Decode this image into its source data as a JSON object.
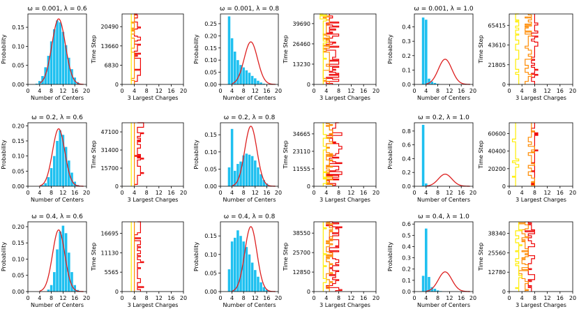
{
  "figure": {
    "common_hist_xlabel": "Number of Centers",
    "common_hist_ylabel": "Probability",
    "common_trace_xlabel": "3 Largest Charges",
    "common_trace_ylabel": "Time Step",
    "colors": {
      "bars": "#1ec0f0",
      "curve": "#dd1f1f",
      "largest": "#ee0000",
      "second": "#ff8a00",
      "third": "#ffee00"
    }
  },
  "chart_data": [
    {
      "type": "bar",
      "title": "ω = 0.001, λ = 0.6",
      "xlabel": "Number of Centers",
      "ylabel": "Probability",
      "xlim": [
        0,
        20
      ],
      "ylim": [
        0,
        0.185
      ],
      "xticks": [
        0,
        4,
        8,
        12,
        16,
        20
      ],
      "yticks": [
        0.0,
        0.05,
        0.1,
        0.15
      ],
      "ytick_labels": [
        "0.00",
        "0.05",
        "0.10",
        "0.15"
      ],
      "bar_x": [
        3,
        4,
        5,
        6,
        7,
        8,
        9,
        10,
        11,
        12,
        13,
        14,
        15,
        16,
        17
      ],
      "bar_values": [
        0.002,
        0.009,
        0.022,
        0.045,
        0.075,
        0.113,
        0.145,
        0.168,
        0.163,
        0.138,
        0.103,
        0.07,
        0.04,
        0.018,
        0.006
      ],
      "curve_mean": 10.5,
      "curve_sd": 2.3,
      "curve_peak": 0.172
    },
    {
      "type": "line",
      "xlabel": "3 Largest Charges",
      "ylabel": "Time Step",
      "xlim": [
        0,
        20
      ],
      "ymax": 25000,
      "xticks": [
        0,
        4,
        8,
        12,
        16,
        20
      ],
      "yticks": [
        0,
        6830,
        13660,
        20490
      ],
      "series": [
        {
          "name": "largest",
          "center": 5.2,
          "spread": 1.2,
          "max": 10
        },
        {
          "name": "second",
          "center": 3.8,
          "spread": 0.5,
          "max": 5
        },
        {
          "name": "third",
          "center": 3.0,
          "spread": 0.4,
          "max": 4
        }
      ]
    },
    {
      "type": "bar",
      "title": "ω = 0.001, λ = 0.8",
      "xlabel": "Number of Centers",
      "ylabel": "Probability",
      "xlim": [
        0,
        20
      ],
      "ylim": [
        0,
        0.29
      ],
      "xticks": [
        0,
        4,
        8,
        12,
        16,
        20
      ],
      "yticks": [
        0.0,
        0.05,
        0.1,
        0.15,
        0.2,
        0.25
      ],
      "ytick_labels": [
        "0.00",
        "0.05",
        "0.10",
        "0.15",
        "0.20",
        "0.25"
      ],
      "bar_x": [
        3,
        4,
        5,
        6,
        7,
        8,
        9,
        10,
        11,
        12,
        13,
        14,
        15
      ],
      "bar_values": [
        0.28,
        0.19,
        0.135,
        0.1,
        0.08,
        0.07,
        0.058,
        0.048,
        0.035,
        0.025,
        0.015,
        0.008,
        0.003
      ],
      "curve_mean": 10.5,
      "curve_sd": 2.3,
      "curve_peak": 0.175
    },
    {
      "type": "line",
      "xlabel": "3 Largest Charges",
      "ylabel": "Time Step",
      "xlim": [
        0,
        20
      ],
      "ymax": 46000,
      "xticks": [
        0,
        4,
        8,
        12,
        16,
        20
      ],
      "yticks": [
        0,
        13230,
        26460,
        39690
      ],
      "series": [
        {
          "name": "largest",
          "center": 6.0,
          "spread": 2.2,
          "max": 12
        },
        {
          "name": "second",
          "center": 4.3,
          "spread": 1.2,
          "max": 7
        },
        {
          "name": "third",
          "center": 3.0,
          "spread": 0.6,
          "max": 4
        }
      ]
    },
    {
      "type": "bar",
      "title": "ω = 0.001, λ = 1.0",
      "xlabel": "Number of Centers",
      "ylabel": "Probability",
      "xlim": [
        0,
        20
      ],
      "ylim": [
        0,
        0.49
      ],
      "xticks": [
        0,
        4,
        8,
        12,
        16,
        20
      ],
      "yticks": [
        0.0,
        0.1,
        0.2,
        0.3,
        0.4
      ],
      "ytick_labels": [
        "0.0",
        "0.1",
        "0.2",
        "0.3",
        "0.4"
      ],
      "bar_x": [
        3,
        4,
        5,
        6,
        7,
        8
      ],
      "bar_values": [
        0.465,
        0.45,
        0.04,
        0.02,
        0.01,
        0.004
      ],
      "curve_mean": 10.5,
      "curve_sd": 2.3,
      "curve_peak": 0.175
    },
    {
      "type": "line",
      "xlabel": "3 Largest Charges",
      "ylabel": "Time Step",
      "xlim": [
        0,
        20
      ],
      "ymax": 78000,
      "xticks": [
        0,
        4,
        8,
        12,
        16,
        20
      ],
      "yticks": [
        0,
        21805,
        43610,
        65415
      ],
      "series": [
        {
          "name": "largest",
          "center": 8.0,
          "spread": 1.0,
          "max": 11
        },
        {
          "name": "second",
          "center": 6.0,
          "spread": 1.5,
          "max": 8
        },
        {
          "name": "third",
          "center": 2.5,
          "spread": 0.8,
          "max": 4
        }
      ]
    },
    {
      "type": "bar",
      "title": "ω = 0.2, λ = 0.6",
      "xlabel": "Number of Centers",
      "ylabel": "Probability",
      "xlim": [
        0,
        20
      ],
      "ylim": [
        0,
        0.21
      ],
      "xticks": [
        0,
        4,
        8,
        12,
        16,
        20
      ],
      "yticks": [
        0.0,
        0.05,
        0.1,
        0.15,
        0.2
      ],
      "ytick_labels": [
        "0.00",
        "0.05",
        "0.10",
        "0.15",
        "0.20"
      ],
      "bar_x": [
        5,
        6,
        7,
        8,
        9,
        10,
        11,
        12,
        13,
        14,
        15,
        16,
        17
      ],
      "bar_values": [
        0.004,
        0.01,
        0.03,
        0.06,
        0.1,
        0.15,
        0.185,
        0.17,
        0.13,
        0.085,
        0.045,
        0.015,
        0.004
      ],
      "curve_mean": 10.5,
      "curve_sd": 2.1,
      "curve_peak": 0.19
    },
    {
      "type": "line",
      "xlabel": "3 Largest Charges",
      "ylabel": "Time Step",
      "xlim": [
        0,
        20
      ],
      "ymax": 55000,
      "xticks": [
        0,
        4,
        8,
        12,
        16,
        20
      ],
      "yticks": [
        0,
        15700,
        31400,
        47100
      ],
      "series": [
        {
          "name": "largest",
          "center": 5.5,
          "spread": 1.2,
          "max": 10
        },
        {
          "name": "second",
          "center": 4.0,
          "spread": 0.5,
          "max": 5
        },
        {
          "name": "third",
          "center": 3.0,
          "spread": 0.4,
          "max": 4
        }
      ]
    },
    {
      "type": "bar",
      "title": "ω = 0.2, λ = 0.8",
      "xlabel": "Number of Centers",
      "ylabel": "Probability",
      "xlim": [
        0,
        20
      ],
      "ylim": [
        0,
        0.185
      ],
      "xticks": [
        0,
        4,
        8,
        12,
        16,
        20
      ],
      "yticks": [
        0.0,
        0.05,
        0.1,
        0.15
      ],
      "ytick_labels": [
        "0.00",
        "0.05",
        "0.10",
        "0.15"
      ],
      "bar_x": [
        3,
        4,
        5,
        6,
        7,
        8,
        9,
        10,
        11,
        12,
        13,
        14,
        15,
        16
      ],
      "bar_values": [
        0.055,
        0.167,
        0.045,
        0.065,
        0.072,
        0.09,
        0.095,
        0.092,
        0.088,
        0.075,
        0.055,
        0.035,
        0.018,
        0.008
      ],
      "curve_mean": 10.5,
      "curve_sd": 2.1,
      "curve_peak": 0.175
    },
    {
      "type": "line",
      "xlabel": "3 Largest Charges",
      "ylabel": "Time Step",
      "xlim": [
        0,
        20
      ],
      "ymax": 42000,
      "xticks": [
        0,
        4,
        8,
        12,
        16,
        20
      ],
      "yticks": [
        0,
        11555,
        23110,
        34665
      ],
      "series": [
        {
          "name": "largest",
          "center": 6.5,
          "spread": 2.5,
          "max": 12
        },
        {
          "name": "second",
          "center": 4.8,
          "spread": 1.3,
          "max": 8
        },
        {
          "name": "third",
          "center": 3.2,
          "spread": 0.6,
          "max": 5
        }
      ]
    },
    {
      "type": "bar",
      "title": "ω = 0.2, λ = 1.0",
      "xlabel": "Number of Centers",
      "ylabel": "Probability",
      "xlim": [
        0,
        20
      ],
      "ylim": [
        0,
        0.92
      ],
      "xticks": [
        0,
        4,
        8,
        12,
        16,
        20
      ],
      "yticks": [
        0.0,
        0.2,
        0.4,
        0.6,
        0.8
      ],
      "ytick_labels": [
        "0.0",
        "0.2",
        "0.4",
        "0.6",
        "0.8"
      ],
      "bar_x": [
        3,
        4,
        5,
        6
      ],
      "bar_values": [
        0.89,
        0.04,
        0.015,
        0.006
      ],
      "curve_mean": 10.5,
      "curve_sd": 2.3,
      "curve_peak": 0.175
    },
    {
      "type": "line",
      "xlabel": "3 Largest Charges",
      "ylabel": "Time Step",
      "xlim": [
        0,
        20
      ],
      "ymax": 73000,
      "xticks": [
        0,
        4,
        8,
        12,
        16,
        20
      ],
      "yticks": [
        0,
        20200,
        40400,
        60600
      ],
      "series": [
        {
          "name": "largest",
          "center": 8.0,
          "spread": 0.6,
          "max": 10
        },
        {
          "name": "second",
          "center": 7.0,
          "spread": 0.8,
          "max": 9
        },
        {
          "name": "third",
          "center": 2.0,
          "spread": 0.6,
          "max": 3
        }
      ]
    },
    {
      "type": "bar",
      "title": "ω = 0.4, λ = 0.6",
      "xlabel": "Number of Centers",
      "ylabel": "Probability",
      "xlim": [
        0,
        20
      ],
      "ylim": [
        0,
        0.215
      ],
      "xticks": [
        0,
        4,
        8,
        12,
        16,
        20
      ],
      "yticks": [
        0.0,
        0.05,
        0.1,
        0.15,
        0.2
      ],
      "ytick_labels": [
        "0.00",
        "0.05",
        "0.10",
        "0.15",
        "0.20"
      ],
      "bar_x": [
        7,
        8,
        9,
        10,
        11,
        12,
        13,
        14,
        15,
        16,
        17
      ],
      "bar_values": [
        0.006,
        0.02,
        0.06,
        0.13,
        0.185,
        0.203,
        0.18,
        0.12,
        0.06,
        0.02,
        0.005
      ],
      "curve_mean": 10.5,
      "curve_sd": 2.1,
      "curve_peak": 0.19
    },
    {
      "type": "line",
      "xlabel": "3 Largest Charges",
      "ylabel": "Time Step",
      "xlim": [
        0,
        20
      ],
      "ymax": 20000,
      "xticks": [
        0,
        4,
        8,
        12,
        16,
        20
      ],
      "yticks": [
        0,
        5565,
        11130,
        16695
      ],
      "series": [
        {
          "name": "largest",
          "center": 5.5,
          "spread": 1.2,
          "max": 10
        },
        {
          "name": "second",
          "center": 4.0,
          "spread": 0.5,
          "max": 5
        },
        {
          "name": "third",
          "center": 3.0,
          "spread": 0.4,
          "max": 4
        }
      ]
    },
    {
      "type": "bar",
      "title": "ω = 0.4, λ = 0.8",
      "xlabel": "Number of Centers",
      "ylabel": "Probability",
      "xlim": [
        0,
        20
      ],
      "ylim": [
        0,
        0.188
      ],
      "xticks": [
        0,
        4,
        8,
        12,
        16,
        20
      ],
      "yticks": [
        0.0,
        0.05,
        0.1,
        0.15
      ],
      "ytick_labels": [
        "0.00",
        "0.05",
        "0.10",
        "0.15"
      ],
      "bar_x": [
        3,
        4,
        5,
        6,
        7,
        8,
        9,
        10,
        11,
        12,
        13,
        14,
        15,
        16
      ],
      "bar_values": [
        0.06,
        0.135,
        0.145,
        0.165,
        0.15,
        0.135,
        0.12,
        0.1,
        0.078,
        0.058,
        0.04,
        0.025,
        0.012,
        0.005
      ],
      "curve_mean": 10.5,
      "curve_sd": 2.1,
      "curve_peak": 0.175
    },
    {
      "type": "line",
      "xlabel": "3 Largest Charges",
      "ylabel": "Time Step",
      "xlim": [
        0,
        20
      ],
      "ymax": 46000,
      "xticks": [
        0,
        4,
        8,
        12,
        16,
        20
      ],
      "yticks": [
        0,
        12850,
        25700,
        38550
      ],
      "series": [
        {
          "name": "largest",
          "center": 6.5,
          "spread": 2.3,
          "max": 12
        },
        {
          "name": "second",
          "center": 4.8,
          "spread": 1.3,
          "max": 8
        },
        {
          "name": "third",
          "center": 3.2,
          "spread": 0.6,
          "max": 5
        }
      ]
    },
    {
      "type": "bar",
      "title": "ω = 0.4, λ = 1.0",
      "xlabel": "Number of Centers",
      "ylabel": "Probability",
      "xlim": [
        0,
        20
      ],
      "ylim": [
        0,
        0.62
      ],
      "xticks": [
        0,
        4,
        8,
        12,
        16,
        20
      ],
      "yticks": [
        0.0,
        0.1,
        0.2,
        0.3,
        0.4,
        0.5,
        0.6
      ],
      "ytick_labels": [
        "0.0",
        "0.1",
        "0.2",
        "0.3",
        "0.4",
        "0.5",
        "0.6"
      ],
      "bar_x": [
        3,
        4,
        5,
        6,
        7,
        8,
        9
      ],
      "bar_values": [
        0.14,
        0.56,
        0.13,
        0.04,
        0.025,
        0.01,
        0.004
      ],
      "curve_mean": 10.5,
      "curve_sd": 2.3,
      "curve_peak": 0.175
    },
    {
      "type": "line",
      "xlabel": "3 Largest Charges",
      "ylabel": "Time Step",
      "xlim": [
        0,
        20
      ],
      "ymax": 46000,
      "xticks": [
        0,
        4,
        8,
        12,
        16,
        20
      ],
      "yticks": [
        0,
        12780,
        25560,
        38340
      ],
      "series": [
        {
          "name": "largest",
          "center": 6.8,
          "spread": 1.4,
          "max": 10
        },
        {
          "name": "second",
          "center": 4.6,
          "spread": 1.5,
          "max": 8
        },
        {
          "name": "third",
          "center": 3.0,
          "spread": 0.7,
          "max": 4
        }
      ]
    }
  ]
}
